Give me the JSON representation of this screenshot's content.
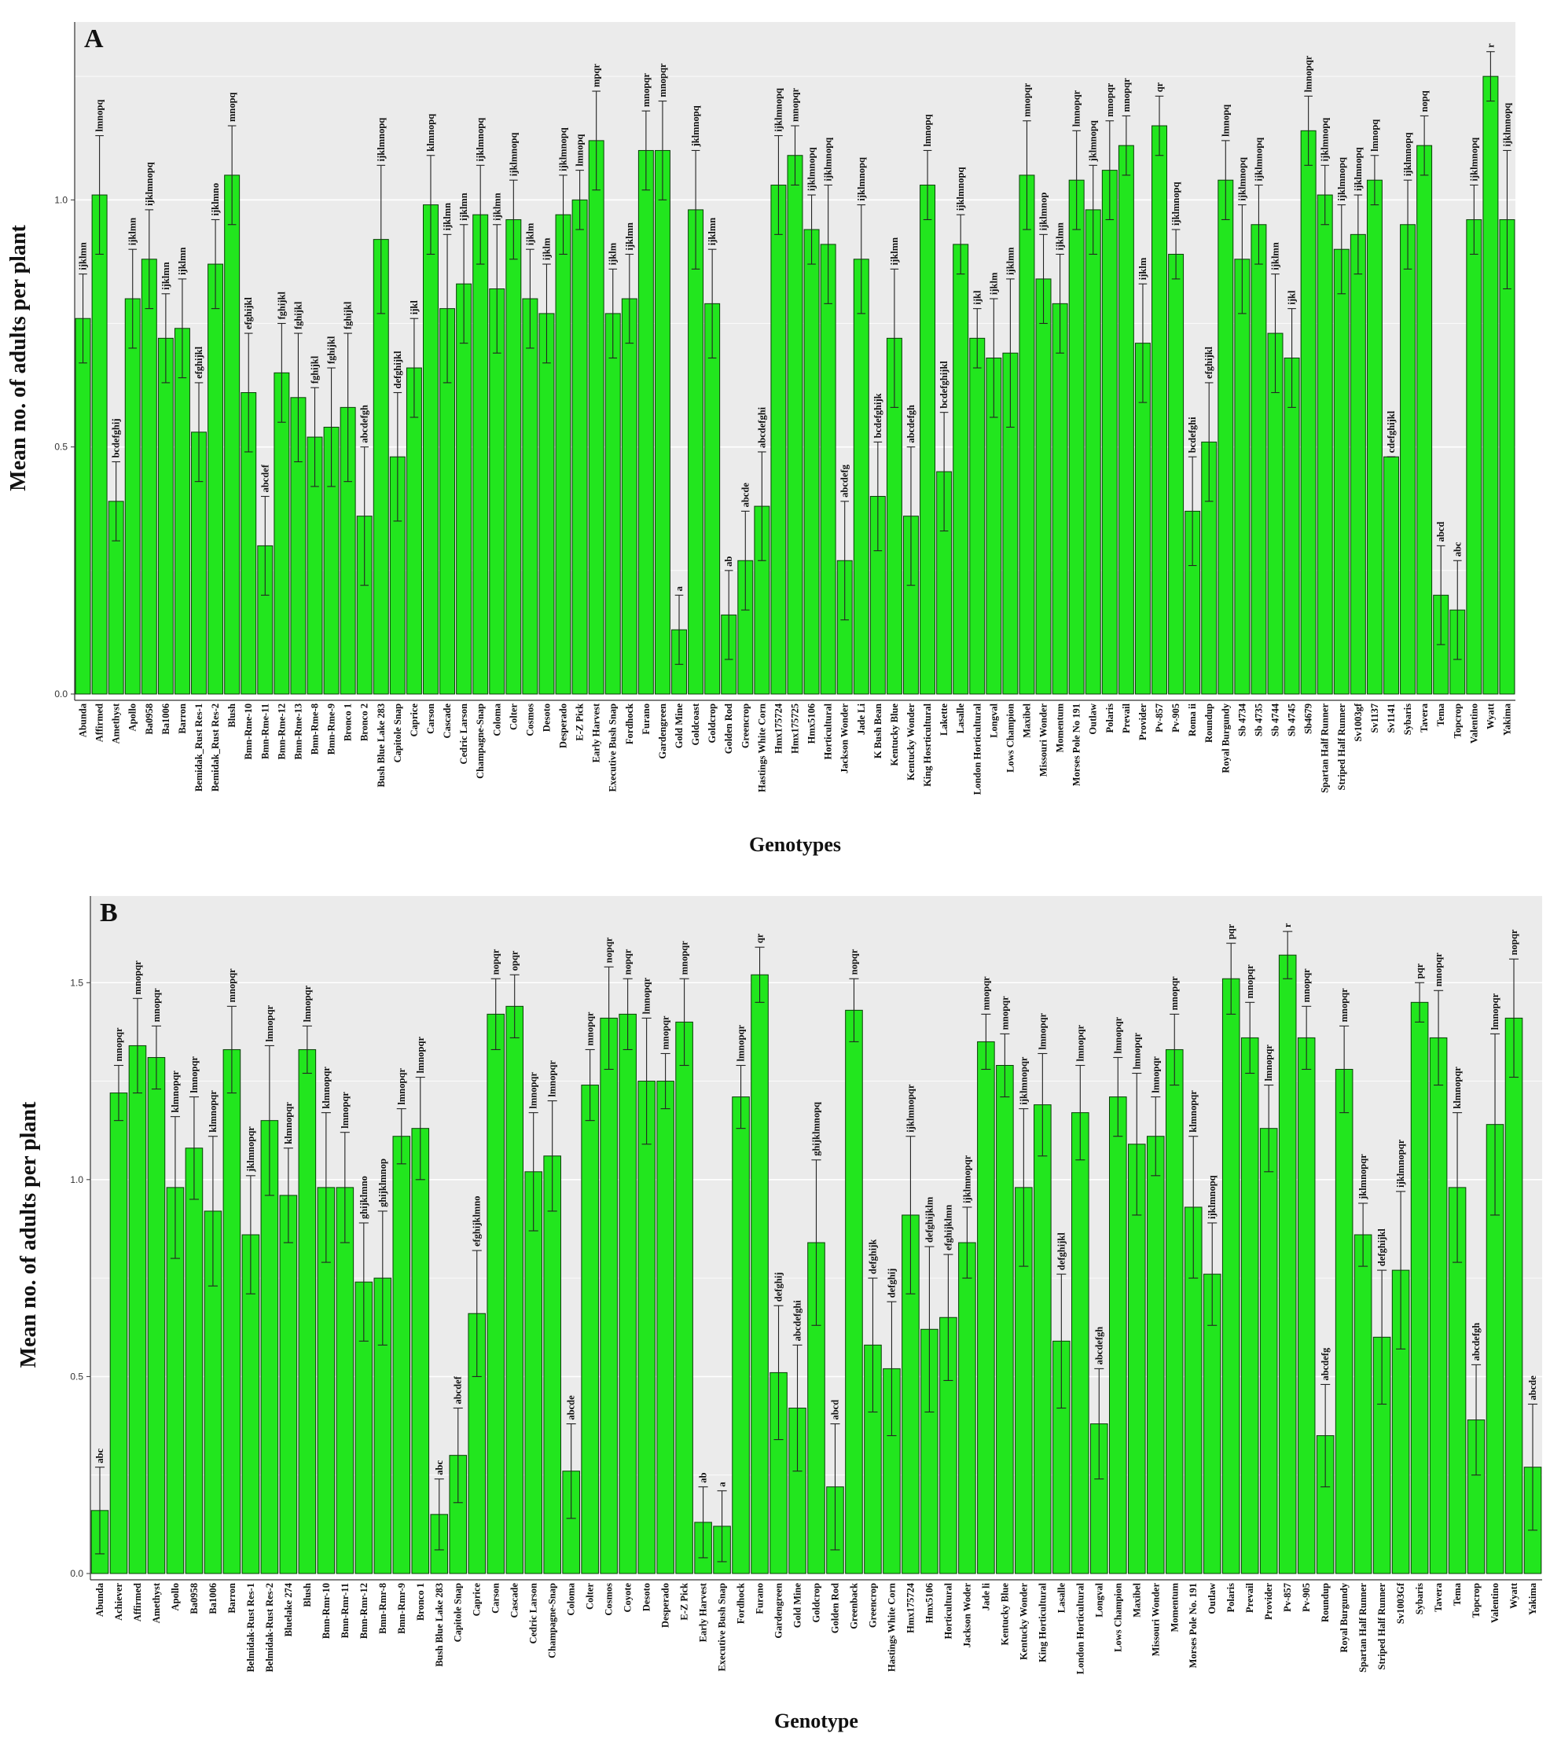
{
  "colors": {
    "bar_fill": "#22e61e",
    "bar_stroke": "#0a3d08",
    "plot_bg": "#ebebeb",
    "grid": "#ffffff",
    "error_bar": "#222222"
  },
  "chart_data": [
    {
      "panel": "A",
      "type": "bar",
      "xlabel": "Genotypes",
      "ylabel": "Mean no. of adults per plant",
      "ylim": [
        0,
        1.36
      ],
      "yticks": [
        "0.0",
        "0.5",
        "1.0"
      ],
      "grid": true,
      "categories": [
        "Abunda",
        "Affirmed",
        "Amethyst",
        "Apollo",
        "Ba0958",
        "Ba1006",
        "Barron",
        "Bemidak_Rust Res-1",
        "Bemidak_Rust Res-2",
        "Blush",
        "Bmn-Rme-10",
        "Bmn-Rme-11",
        "Bmn-Rme-12",
        "Bmn-Rme-13",
        "Bmn-Rme-8",
        "Bmn-Rme-9",
        "Bronco 1",
        "Bronco 2",
        "Bush Blue Lake 283",
        "Capitole Snap",
        "Caprice",
        "Carson",
        "Cascade",
        "Cedric Larson",
        "Champagne-Snap",
        "Coloma",
        "Colter",
        "Cosmos",
        "Desoto",
        "Desperado",
        "E-Z Pick",
        "Early Harvest",
        "Executive Bush Snap",
        "Fordhock",
        "Furano",
        "Gardengreen",
        "Gold Mine",
        "Goldcoast",
        "Goldcrop",
        "Golden Rod",
        "Greencrop",
        "Hastings White Corn",
        "Hmx175724",
        "Hmx175725",
        "Hmx5106",
        "Horticultural",
        "Jackson Wonder",
        "Jade Li",
        "K Bush Bean",
        "Kentucky Blue",
        "Kentucky Wonder",
        "King Hosrticultural",
        "Lakette",
        "Lasalle",
        "London Horticultural",
        "Longval",
        "Lows Champion",
        "Maxibel",
        "Missouri Wonder",
        "Momentum",
        "Morses Pole No 191",
        "Outlaw",
        "Polaris",
        "Prevail",
        "Provider",
        "Pv-857",
        "Pv-905",
        "Roma ii",
        "Roundup",
        "Royal Burgundy",
        "Sb 4734",
        "Sb 4735",
        "Sb 4744",
        "Sb 4745",
        "Sb4679",
        "Spartan Half Runner",
        "Striped Half Runner",
        "Sv1003gf",
        "Sv1137",
        "Sv1141",
        "Sybaris",
        "Tavera",
        "Tema",
        "Topcrop",
        "Valentino",
        "Wyatt",
        "Yakima"
      ],
      "values": [
        0.76,
        1.01,
        0.39,
        0.8,
        0.88,
        0.72,
        0.74,
        0.53,
        0.87,
        1.05,
        0.61,
        0.3,
        0.65,
        0.6,
        0.52,
        0.54,
        0.58,
        0.36,
        0.92,
        0.48,
        0.66,
        0.99,
        0.78,
        0.83,
        0.97,
        0.82,
        0.96,
        0.8,
        0.77,
        0.97,
        1.0,
        1.12,
        0.77,
        0.8,
        1.1,
        1.1,
        0.13,
        0.98,
        0.79,
        0.16,
        0.27,
        0.38,
        1.03,
        1.09,
        0.94,
        0.91,
        0.27,
        0.88,
        0.4,
        0.72,
        0.36,
        1.03,
        0.45,
        0.91,
        0.72,
        0.68,
        0.69,
        1.05,
        0.84,
        0.79,
        1.04,
        0.98,
        1.06,
        1.11,
        0.71,
        1.15,
        0.89,
        0.37,
        0.51,
        1.04,
        0.88,
        0.95,
        0.73,
        0.68,
        1.14,
        1.01,
        0.9,
        0.93,
        1.04,
        0.48,
        0.95,
        1.11,
        0.2,
        0.17,
        0.96,
        1.25,
        0.96
      ],
      "errors": [
        0.09,
        0.12,
        0.08,
        0.1,
        0.1,
        0.09,
        0.1,
        0.1,
        0.09,
        0.1,
        0.12,
        0.1,
        0.1,
        0.13,
        0.1,
        0.12,
        0.15,
        0.14,
        0.15,
        0.13,
        0.1,
        0.1,
        0.15,
        0.12,
        0.1,
        0.13,
        0.08,
        0.1,
        0.1,
        0.08,
        0.06,
        0.1,
        0.09,
        0.09,
        0.08,
        0.1,
        0.07,
        0.12,
        0.11,
        0.09,
        0.1,
        0.11,
        0.1,
        0.06,
        0.07,
        0.12,
        0.12,
        0.11,
        0.11,
        0.14,
        0.14,
        0.07,
        0.12,
        0.06,
        0.06,
        0.12,
        0.15,
        0.11,
        0.09,
        0.1,
        0.1,
        0.09,
        0.1,
        0.06,
        0.12,
        0.06,
        0.05,
        0.11,
        0.12,
        0.08,
        0.11,
        0.08,
        0.12,
        0.1,
        0.07,
        0.06,
        0.09,
        0.08,
        0.05,
        0.0,
        0.09,
        0.06,
        0.1,
        0.1,
        0.07,
        0.05,
        0.14
      ],
      "significance": [
        "ijklmn",
        "lmnopq",
        "bcdefghij",
        "ijklmn",
        "ijklmnopq",
        "ijklmn",
        "ijklmn",
        "efghijkl",
        "ijklmno",
        "mnopq",
        "efghijkl",
        "abcdef",
        "fghijkl",
        "fghijkl",
        "fghijkl",
        "fghijkl",
        "fghijkl",
        "abcdefgh",
        "ijklmnopq",
        "defghijkl",
        "ijkl",
        "klmnopq",
        "ijklmn",
        "ijklmn",
        "ijklmnopq",
        "ijklmn",
        "ijklmnopq",
        "ijklm",
        "ijklm",
        "ijklmnopq",
        "lmnopq",
        "mpqr",
        "ijklm",
        "ijklmn",
        "mnopqr",
        "mnopqr",
        "a",
        "jklmnopq",
        "ijklmn",
        "ab",
        "abcde",
        "abcdefghi",
        "ijklmnopq",
        "mnopqr",
        "ijklmnopq",
        "ijklmnopq",
        "abcdefg",
        "ijklmnopq",
        "bcdefghijk",
        "ijklmn",
        "abcdefgh",
        "lmnopq",
        "bcdefghijkl",
        "ijklmnopq",
        "ijkl",
        "ijklm",
        "ijklmn",
        "mnopqr",
        "ijklmnop",
        "ijklmn",
        "lmnopqr",
        "jklmnopq",
        "mnopqr",
        "mnopqr",
        "ijklm",
        "qr",
        "ijklmnopq",
        "bcdefghi",
        "efghijkl",
        "lmnopq",
        "ijklmnopq",
        "ijklmnopq",
        "ijklmn",
        "ijkl",
        "lmnopqr",
        "ijklmnopq",
        "ijklmnopq",
        "ijklmnopq",
        "lmnopq",
        "cdefghijkl",
        "ijklmnopq",
        "nopq",
        "abcd",
        "abc",
        "ijklmnopq",
        "r",
        "ijklmnopq"
      ]
    },
    {
      "panel": "B",
      "type": "bar",
      "xlabel": "Genotype",
      "ylabel": "Mean no. of adults per plant",
      "ylim": [
        0,
        1.72
      ],
      "yticks": [
        "0.0",
        "0.5",
        "1.0",
        "1.5"
      ],
      "grid": true,
      "categories": [
        "Abunda",
        "Achiever",
        "Affirmed",
        "Amethyst",
        "Apollo",
        "Ba0958",
        "Ba1006",
        "Barron",
        "Belmidak-Rust Res-1",
        "Belmidak-Rust Res-2",
        "Bluelake 274",
        "Blush",
        "Bmn-Rmr-10",
        "Bmn-Rmr-11",
        "Bmn-Rmr-12",
        "Bmn-Rmr-8",
        "Bmn-Rmr-9",
        "Bronco 1",
        "Bush Blue Lake 283",
        "Capitole Snap",
        "Caprice",
        "Carson",
        "Cascade",
        "Cedric Larson",
        "Champagne-Snap",
        "Coloma",
        "Colter",
        "Cosmos",
        "Coyote",
        "Desoto",
        "Desperado",
        "E-Z Pick",
        "Early Harvest",
        "Executive Bush Snap",
        "Fordhock",
        "Furano",
        "Gardengreen",
        "Gold Mine",
        "Goldcrop",
        "Golden Rod",
        "Greenback",
        "Greencrop",
        "Hastings White Corn",
        "Hmx175724",
        "Hmx5106",
        "Horticultural",
        "Jackson Woder",
        "Jade li",
        "Kentucky Blue",
        "Kentucky Wonder",
        "King Horticultural",
        "Lasalle",
        "London Horticultural",
        "Longval",
        "Lows Champion",
        "Maxibel",
        "Missouri Wonder",
        "Momentum",
        "Morses Pole No. 191",
        "Outlaw",
        "Polaris",
        "Prevail",
        "Provider",
        "Pv-857",
        "Pv-905",
        "Roundup",
        "Royal Burgundy",
        "Spartan Half Runner",
        "Striped Half Runner",
        "Sv1003Gf",
        "Sybaris",
        "Tavera",
        "Tema",
        "Topcrop",
        "Valentino",
        "Wyatt",
        "Yakima"
      ],
      "values": [
        0.16,
        1.22,
        1.34,
        1.31,
        0.98,
        1.08,
        0.92,
        1.33,
        0.86,
        1.15,
        0.96,
        1.33,
        0.98,
        0.98,
        0.74,
        0.75,
        1.11,
        1.13,
        0.15,
        0.3,
        0.66,
        1.42,
        1.44,
        1.02,
        1.06,
        0.26,
        1.24,
        1.41,
        1.42,
        1.25,
        1.25,
        1.4,
        0.13,
        0.12,
        1.21,
        1.52,
        0.51,
        0.42,
        0.84,
        0.22,
        1.43,
        0.58,
        0.52,
        0.91,
        0.62,
        0.65,
        0.84,
        1.35,
        1.29,
        0.98,
        1.19,
        0.59,
        1.17,
        0.38,
        1.21,
        1.09,
        1.11,
        1.33,
        0.93,
        0.76,
        1.51,
        1.36,
        1.13,
        1.57,
        1.36,
        0.35,
        1.28,
        0.86,
        0.6,
        0.77,
        1.45,
        1.36,
        0.98,
        0.39,
        1.14,
        1.41,
        0.27
      ],
      "errors": [
        0.11,
        0.07,
        0.12,
        0.08,
        0.18,
        0.13,
        0.19,
        0.11,
        0.15,
        0.19,
        0.12,
        0.06,
        0.19,
        0.14,
        0.15,
        0.17,
        0.07,
        0.13,
        0.09,
        0.12,
        0.16,
        0.09,
        0.08,
        0.15,
        0.14,
        0.12,
        0.09,
        0.13,
        0.09,
        0.16,
        0.07,
        0.11,
        0.09,
        0.09,
        0.08,
        0.07,
        0.17,
        0.16,
        0.21,
        0.16,
        0.08,
        0.17,
        0.17,
        0.2,
        0.21,
        0.16,
        0.09,
        0.07,
        0.08,
        0.2,
        0.13,
        0.17,
        0.12,
        0.14,
        0.1,
        0.18,
        0.1,
        0.09,
        0.18,
        0.13,
        0.09,
        0.09,
        0.11,
        0.06,
        0.08,
        0.13,
        0.11,
        0.08,
        0.17,
        0.2,
        0.05,
        0.12,
        0.19,
        0.14,
        0.23,
        0.15,
        0.16
      ],
      "significance": [
        "abc",
        "mnopqr",
        "mnopqr",
        "mnopqr",
        "klmnopqr",
        "lmnopqr",
        "klmnopqr",
        "mnopqr",
        "jklmnopqr",
        "lmnopqr",
        "klmnopqr",
        "lmnopqr",
        "klmnopqr",
        "lmnopqr",
        "ghijklmno",
        "ghijklmnop",
        "lmnopqr",
        "lmnopqr",
        "abc",
        "abcdef",
        "efghijklmno",
        "nopqr",
        "opqr",
        "lmnopqr",
        "lmnopqr",
        "abcde",
        "mnopqr",
        "nopqr",
        "nopqr",
        "lmnopqr",
        "mnopqr",
        "mnopqr",
        "ab",
        "a",
        "lmnopqr",
        "qr",
        "defghij",
        "abcdefghi",
        "ghijklmnopq",
        "abcd",
        "nopqr",
        "defghijk",
        "defghij",
        "ijklmnopqr",
        "defghijklm",
        "efghijklmn",
        "ijklmnopqr",
        "mnopqr",
        "mnopqr",
        "ijklmnopqr",
        "lmnopqr",
        "defghijkl",
        "lmnopqr",
        "abcdefgh",
        "lmnopqr",
        "lmnopqr",
        "lmnopqr",
        "mnopqr",
        "klmnopqr",
        "ijklmnopq",
        "pqr",
        "mnopqr",
        "lmnopqr",
        "r",
        "mnopqr",
        "abcdefg",
        "mnopqr",
        "jklmnopqr",
        "defghijkl",
        "ijklmnopqr",
        "pqr",
        "mnopqr",
        "klmnopqr",
        "abcdefgh",
        "lmnopqr",
        "nopqr",
        "abcde"
      ]
    }
  ]
}
